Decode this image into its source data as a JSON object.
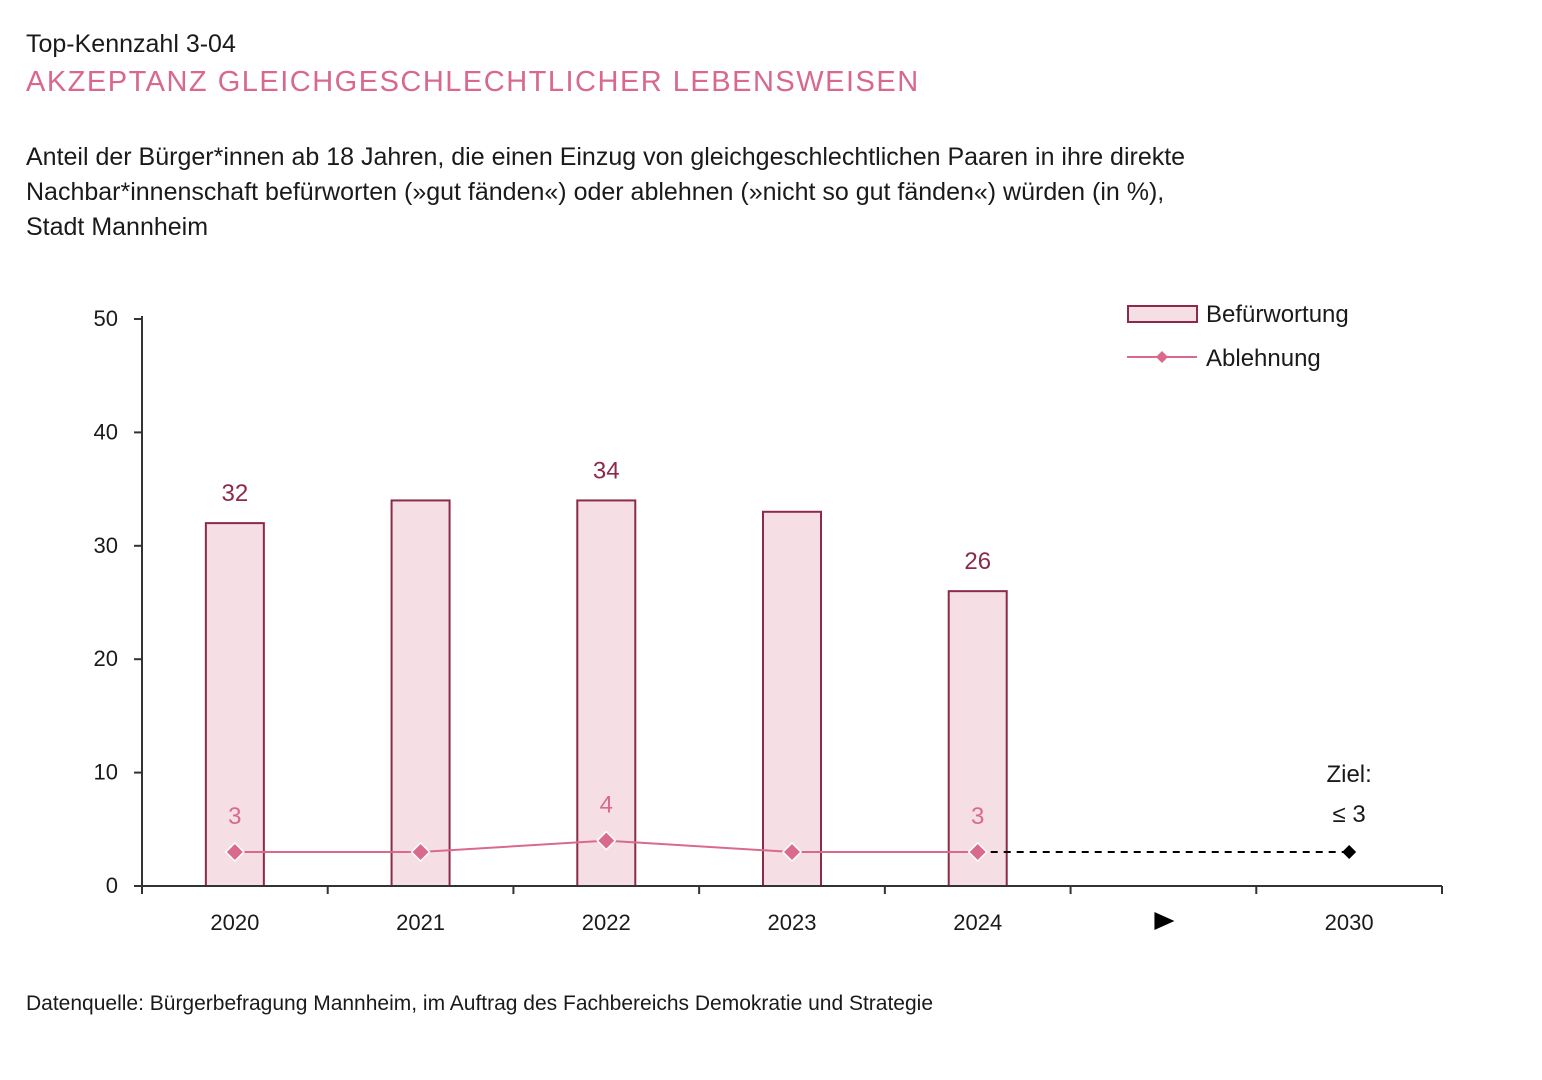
{
  "header": {
    "kennzahl": "Top-Kennzahl 3-04",
    "title": "AKZEPTANZ GLEICHGESCHLECHTLICHER LEBENSWEISEN",
    "subtitle_lines": [
      "Anteil der Bürger*innen ab 18 Jahren, die einen Einzug von gleichgeschlechtlichen Paaren in ihre direkte",
      "Nachbar*innenschaft befürworten (»gut fänden«) oder ablehnen (»nicht so gut fänden«) würden (in %),",
      "Stadt Mannheim"
    ]
  },
  "source": "Datenquelle: Bürgerbefragung Mannheim, im Auftrag des Fachbereichs Demokratie und Strategie",
  "colors": {
    "title": "#d8688e",
    "bar_fill": "#f5dfe5",
    "bar_stroke": "#8b2a4a",
    "line": "#d96a8c",
    "target": "#000000"
  },
  "chart_data": {
    "type": "bar",
    "categories": [
      "2020",
      "2021",
      "2022",
      "2023",
      "2024",
      "",
      "2030"
    ],
    "arrow_category_index": 5,
    "ylim": [
      0,
      50
    ],
    "yticks": [
      "0",
      "10",
      "20",
      "30",
      "40",
      "50"
    ],
    "legend": {
      "position": "top-right",
      "entries": [
        "Befürwortung",
        "Ablehnung"
      ]
    },
    "series": [
      {
        "name": "Befürwortung",
        "kind": "bar",
        "values": [
          32,
          34,
          34,
          33,
          26,
          null,
          null
        ],
        "labels": [
          "32",
          "",
          "34",
          "",
          "26",
          "",
          ""
        ]
      },
      {
        "name": "Ablehnung",
        "kind": "line",
        "values": [
          3,
          3,
          4,
          3,
          3,
          null,
          null
        ],
        "labels": [
          "3",
          "",
          "4",
          "",
          "3",
          "",
          ""
        ]
      }
    ],
    "target": {
      "category_index": 6,
      "value": 3,
      "label_line1": "Ziel:",
      "label_line2": "≤ 3"
    }
  }
}
